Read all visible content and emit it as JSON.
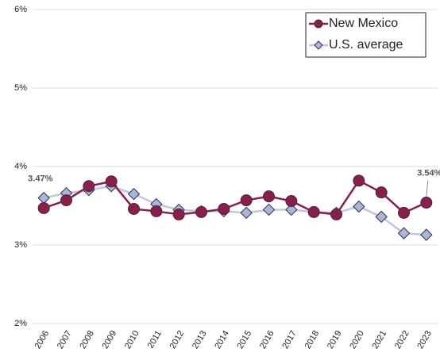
{
  "chart_data": {
    "type": "line",
    "categories": [
      "2006",
      "2007",
      "2008",
      "2009",
      "2010",
      "2011",
      "2012",
      "2013",
      "2014",
      "2015",
      "2016",
      "2017",
      "2018",
      "2019",
      "2020",
      "2021",
      "2022",
      "2023"
    ],
    "series": [
      {
        "name": "New Mexico",
        "color": "#8e1c4f",
        "marker": "circle",
        "values": [
          3.47,
          3.57,
          3.75,
          3.81,
          3.46,
          3.43,
          3.39,
          3.42,
          3.46,
          3.57,
          3.62,
          3.56,
          3.42,
          3.39,
          3.82,
          3.67,
          3.41,
          3.54
        ],
        "value_labels": [
          "3.47%",
          null,
          null,
          null,
          null,
          null,
          null,
          null,
          null,
          null,
          null,
          null,
          null,
          null,
          null,
          null,
          null,
          "3.54%"
        ]
      },
      {
        "name": "U.S. average",
        "color": "#a9b4e0",
        "marker": "diamond",
        "values": [
          3.6,
          3.66,
          3.7,
          3.75,
          3.65,
          3.52,
          3.45,
          3.43,
          3.43,
          3.41,
          3.45,
          3.45,
          3.42,
          3.41,
          3.49,
          3.36,
          3.15,
          3.13
        ]
      }
    ],
    "ylim": [
      2,
      6
    ],
    "yticks": [
      {
        "value": 2,
        "label": "2%"
      },
      {
        "value": 3,
        "label": "3%"
      },
      {
        "value": 4,
        "label": "4%"
      },
      {
        "value": 5,
        "label": "5%"
      },
      {
        "value": 6,
        "label": "6%"
      }
    ],
    "grid": true,
    "legend": "top-right"
  }
}
